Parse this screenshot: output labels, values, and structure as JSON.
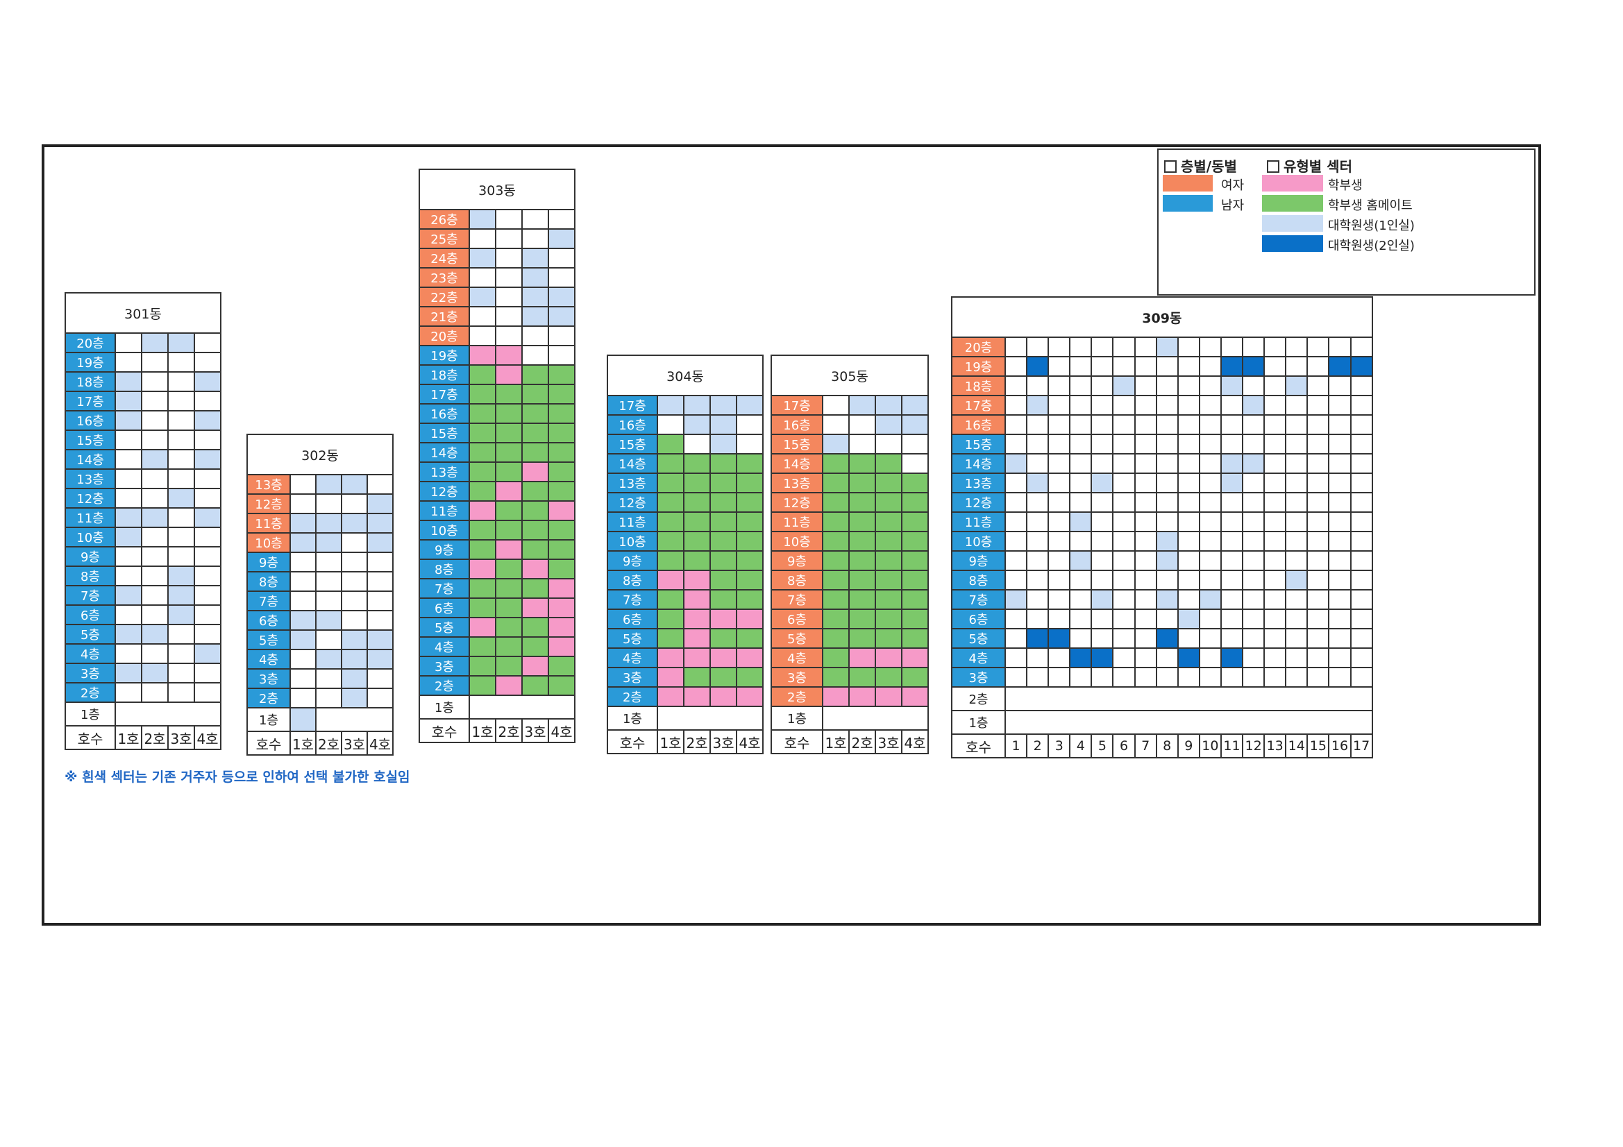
{
  "colors": {
    "female": "#f4875e",
    "male": "#2a9ad8",
    "undergrad": "#f69ac8",
    "roommate": "#7cc86a",
    "grad1": "#c8dcf4",
    "grad2": "#0a70c8",
    "white": "#ffffff"
  },
  "legend": {
    "floor_header": "층별/동별",
    "type_header": "유형별 섹터",
    "floor_items": [
      {
        "color": "female",
        "label": "여자"
      },
      {
        "color": "male",
        "label": "남자"
      }
    ],
    "type_items": [
      {
        "color": "undergrad",
        "label": "학부생"
      },
      {
        "color": "roommate",
        "label": "학부생 홈메이트"
      },
      {
        "color": "grad1",
        "label": "대학원생(1인실)"
      },
      {
        "color": "grad2",
        "label": "대학원생(2인실)"
      }
    ]
  },
  "note": "※ 흰색 섹터는 기존 거주자 등으로 인하여 선택 불가한 호실임",
  "ho_label": "호수",
  "buildings": [
    {
      "id": "301",
      "title": "301동",
      "room_labels": [
        "1호",
        "2호",
        "3호",
        "4호"
      ],
      "floors": [
        {
          "label": "20층",
          "g": "M",
          "rooms": "WLLW"
        },
        {
          "label": "19층",
          "g": "M",
          "rooms": "WWWW"
        },
        {
          "label": "18층",
          "g": "M",
          "rooms": "LWWL"
        },
        {
          "label": "17층",
          "g": "M",
          "rooms": "LWWW"
        },
        {
          "label": "16층",
          "g": "M",
          "rooms": "LWWL"
        },
        {
          "label": "15층",
          "g": "M",
          "rooms": "WWWW"
        },
        {
          "label": "14층",
          "g": "M",
          "rooms": "WLWL"
        },
        {
          "label": "13층",
          "g": "M",
          "rooms": "WWWW"
        },
        {
          "label": "12층",
          "g": "M",
          "rooms": "WWLW"
        },
        {
          "label": "11층",
          "g": "M",
          "rooms": "LLWL"
        },
        {
          "label": "10층",
          "g": "M",
          "rooms": "LWWW"
        },
        {
          "label": "9층",
          "g": "M",
          "rooms": "WWWW"
        },
        {
          "label": "8층",
          "g": "M",
          "rooms": "WWLW"
        },
        {
          "label": "7층",
          "g": "M",
          "rooms": "LWLW"
        },
        {
          "label": "6층",
          "g": "M",
          "rooms": "WWLW"
        },
        {
          "label": "5층",
          "g": "M",
          "rooms": "LLWW"
        },
        {
          "label": "4층",
          "g": "M",
          "rooms": "WWWL"
        },
        {
          "label": "3층",
          "g": "M",
          "rooms": "LLWW"
        },
        {
          "label": "2층",
          "g": "M",
          "rooms": "WWWW"
        }
      ],
      "plain_rows": [
        {
          "label": "1층",
          "rooms": ""
        }
      ]
    },
    {
      "id": "302",
      "title": "302동",
      "room_labels": [
        "1호",
        "2호",
        "3호",
        "4호"
      ],
      "floors": [
        {
          "label": "13층",
          "g": "F",
          "rooms": "WLLW"
        },
        {
          "label": "12층",
          "g": "F",
          "rooms": "WWWL"
        },
        {
          "label": "11층",
          "g": "F",
          "rooms": "LLLL"
        },
        {
          "label": "10층",
          "g": "F",
          "rooms": "LLWL"
        },
        {
          "label": "9층",
          "g": "M",
          "rooms": "WWWW"
        },
        {
          "label": "8층",
          "g": "M",
          "rooms": "WWWW"
        },
        {
          "label": "7층",
          "g": "M",
          "rooms": "WWWW"
        },
        {
          "label": "6층",
          "g": "M",
          "rooms": "LLWW"
        },
        {
          "label": "5층",
          "g": "M",
          "rooms": "LWLL"
        },
        {
          "label": "4층",
          "g": "M",
          "rooms": "WLLL"
        },
        {
          "label": "3층",
          "g": "M",
          "rooms": "WWLW"
        },
        {
          "label": "2층",
          "g": "M",
          "rooms": "WWLW"
        }
      ],
      "plain_rows": [
        {
          "label": "1층",
          "rooms": "L"
        }
      ]
    },
    {
      "id": "303",
      "title": "303동",
      "room_labels": [
        "1호",
        "2호",
        "3호",
        "4호"
      ],
      "floors": [
        {
          "label": "26층",
          "g": "F",
          "rooms": "LWWW"
        },
        {
          "label": "25층",
          "g": "F",
          "rooms": "WWWL"
        },
        {
          "label": "24층",
          "g": "F",
          "rooms": "LWLW"
        },
        {
          "label": "23층",
          "g": "F",
          "rooms": "WWLW"
        },
        {
          "label": "22층",
          "g": "F",
          "rooms": "LWLL"
        },
        {
          "label": "21층",
          "g": "F",
          "rooms": "WWLL"
        },
        {
          "label": "20층",
          "g": "F",
          "rooms": "WWWW"
        },
        {
          "label": "19층",
          "g": "M",
          "rooms": "PPWW"
        },
        {
          "label": "18층",
          "g": "M",
          "rooms": "GPGG"
        },
        {
          "label": "17층",
          "g": "M",
          "rooms": "GGGG"
        },
        {
          "label": "16층",
          "g": "M",
          "rooms": "GGGG"
        },
        {
          "label": "15층",
          "g": "M",
          "rooms": "GGGG"
        },
        {
          "label": "14층",
          "g": "M",
          "rooms": "GGGG"
        },
        {
          "label": "13층",
          "g": "M",
          "rooms": "GGPG"
        },
        {
          "label": "12층",
          "g": "M",
          "rooms": "GPGG"
        },
        {
          "label": "11층",
          "g": "M",
          "rooms": "PGGP"
        },
        {
          "label": "10층",
          "g": "M",
          "rooms": "GGGG"
        },
        {
          "label": "9층",
          "g": "M",
          "rooms": "GPGG"
        },
        {
          "label": "8층",
          "g": "M",
          "rooms": "PGPG"
        },
        {
          "label": "7층",
          "g": "M",
          "rooms": "GGGP"
        },
        {
          "label": "6층",
          "g": "M",
          "rooms": "GGPP"
        },
        {
          "label": "5층",
          "g": "M",
          "rooms": "PGGP"
        },
        {
          "label": "4층",
          "g": "M",
          "rooms": "GGGP"
        },
        {
          "label": "3층",
          "g": "M",
          "rooms": "GGPG"
        },
        {
          "label": "2층",
          "g": "M",
          "rooms": "GPGG"
        }
      ],
      "plain_rows": [
        {
          "label": "1층",
          "rooms": ""
        }
      ]
    },
    {
      "id": "304",
      "title": "304동",
      "room_labels": [
        "1호",
        "2호",
        "3호",
        "4호"
      ],
      "floors": [
        {
          "label": "17층",
          "g": "M",
          "rooms": "LLLL"
        },
        {
          "label": "16층",
          "g": "M",
          "rooms": "WLLW"
        },
        {
          "label": "15층",
          "g": "M",
          "rooms": "GWLW"
        },
        {
          "label": "14층",
          "g": "M",
          "rooms": "GGGG"
        },
        {
          "label": "13층",
          "g": "M",
          "rooms": "GGGG"
        },
        {
          "label": "12층",
          "g": "M",
          "rooms": "GGGG"
        },
        {
          "label": "11층",
          "g": "M",
          "rooms": "GGGG"
        },
        {
          "label": "10층",
          "g": "M",
          "rooms": "GGGG"
        },
        {
          "label": "9층",
          "g": "M",
          "rooms": "GGGG"
        },
        {
          "label": "8층",
          "g": "M",
          "rooms": "PPGG"
        },
        {
          "label": "7층",
          "g": "M",
          "rooms": "GPGG"
        },
        {
          "label": "6층",
          "g": "M",
          "rooms": "GPPP"
        },
        {
          "label": "5층",
          "g": "M",
          "rooms": "GPGG"
        },
        {
          "label": "4층",
          "g": "M",
          "rooms": "PPPP"
        },
        {
          "label": "3층",
          "g": "M",
          "rooms": "PGGG"
        },
        {
          "label": "2층",
          "g": "M",
          "rooms": "PPPP"
        }
      ],
      "plain_rows": [
        {
          "label": "1층",
          "rooms": ""
        }
      ]
    },
    {
      "id": "305",
      "title": "305동",
      "room_labels": [
        "1호",
        "2호",
        "3호",
        "4호"
      ],
      "floors": [
        {
          "label": "17층",
          "g": "F",
          "rooms": "WLLL"
        },
        {
          "label": "16층",
          "g": "F",
          "rooms": "WWLL"
        },
        {
          "label": "15층",
          "g": "F",
          "rooms": "LWWW"
        },
        {
          "label": "14층",
          "g": "F",
          "rooms": "GGGW"
        },
        {
          "label": "13층",
          "g": "F",
          "rooms": "GGGG"
        },
        {
          "label": "12층",
          "g": "F",
          "rooms": "GGGG"
        },
        {
          "label": "11층",
          "g": "F",
          "rooms": "GGGG"
        },
        {
          "label": "10층",
          "g": "F",
          "rooms": "GGGG"
        },
        {
          "label": "9층",
          "g": "F",
          "rooms": "GGGG"
        },
        {
          "label": "8층",
          "g": "F",
          "rooms": "GGGG"
        },
        {
          "label": "7층",
          "g": "F",
          "rooms": "GGGG"
        },
        {
          "label": "6층",
          "g": "F",
          "rooms": "GGGG"
        },
        {
          "label": "5층",
          "g": "F",
          "rooms": "GGGG"
        },
        {
          "label": "4층",
          "g": "F",
          "rooms": "GPPP"
        },
        {
          "label": "3층",
          "g": "F",
          "rooms": "GGGG"
        },
        {
          "label": "2층",
          "g": "F",
          "rooms": "PPPP"
        }
      ],
      "plain_rows": [
        {
          "label": "1층",
          "rooms": ""
        }
      ]
    },
    {
      "id": "309",
      "title": "309동",
      "room_labels": [
        "1",
        "2",
        "3",
        "4",
        "5",
        "6",
        "7",
        "8",
        "9",
        "10",
        "11",
        "12",
        "13",
        "14",
        "15",
        "16",
        "17"
      ],
      "floors": [
        {
          "label": "20층",
          "g": "F",
          "rooms": "WWWWWWWLWWWWWWWWW"
        },
        {
          "label": "19층",
          "g": "F",
          "rooms": "WDWWWWWWWWDDWWWDD"
        },
        {
          "label": "18층",
          "g": "F",
          "rooms": "WWWWWLWWWWLWWLWWW"
        },
        {
          "label": "17층",
          "g": "F",
          "rooms": "WLWWWWWWWWWLWWWWW"
        },
        {
          "label": "16층",
          "g": "F",
          "rooms": "WWWWWWWWWWWWWWWWW"
        },
        {
          "label": "15층",
          "g": "M",
          "rooms": "WWWWWWWWWWWWWWWWW"
        },
        {
          "label": "14층",
          "g": "M",
          "rooms": "LWWWWWWWWWLLWWWWW"
        },
        {
          "label": "13층",
          "g": "M",
          "rooms": "WLWWLWWWWWLWWWWWW"
        },
        {
          "label": "12층",
          "g": "M",
          "rooms": "WWWWWWWWWWWWWWWWW"
        },
        {
          "label": "11층",
          "g": "M",
          "rooms": "WWWLWWWWWWWWWWWWW"
        },
        {
          "label": "10층",
          "g": "M",
          "rooms": "WWWWWWWLWWWWWWWWW"
        },
        {
          "label": "9층",
          "g": "M",
          "rooms": "WWWLWWWLWWWWWWWWW"
        },
        {
          "label": "8층",
          "g": "M",
          "rooms": "WWWWWWWWWWWWWLWWW"
        },
        {
          "label": "7층",
          "g": "M",
          "rooms": "LWWWLWWLWLWWWWWWW"
        },
        {
          "label": "6층",
          "g": "M",
          "rooms": "WWWWWWWWLWWWWWWWW"
        },
        {
          "label": "5층",
          "g": "M",
          "rooms": "WDDWWWWDWWWWWWWWW"
        },
        {
          "label": "4층",
          "g": "M",
          "rooms": "WWWDDWWWDWDWWWWWW"
        },
        {
          "label": "3층",
          "g": "M",
          "rooms": "WWWWWWWWWWWWWWWWW"
        }
      ],
      "plain_rows": [
        {
          "label": "2층",
          "rooms": ""
        },
        {
          "label": "1층",
          "rooms": ""
        }
      ]
    }
  ]
}
